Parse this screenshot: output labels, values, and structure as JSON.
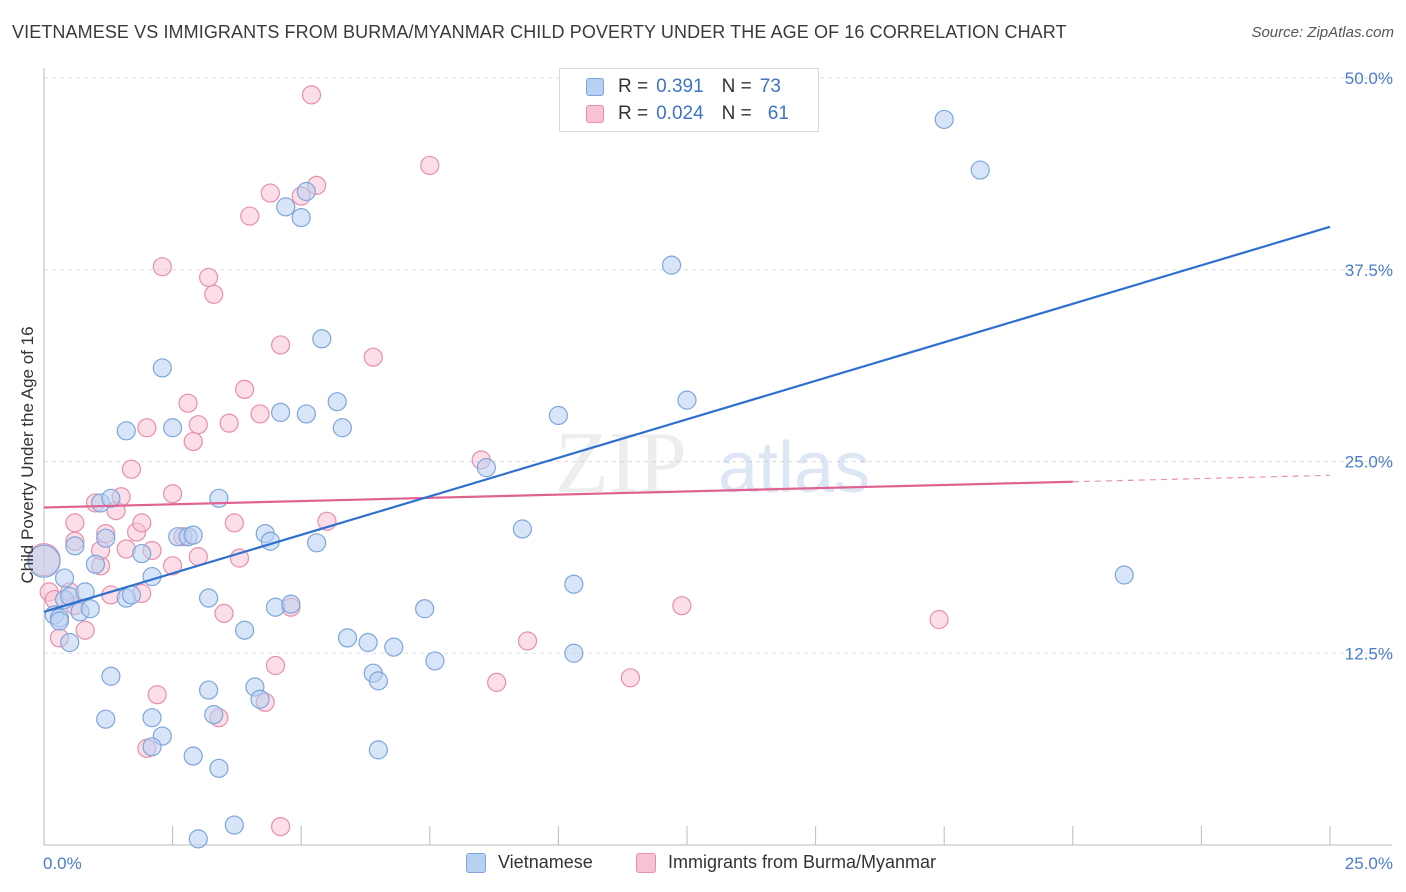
{
  "title": "VIETNAMESE VS IMMIGRANTS FROM BURMA/MYANMAR CHILD POVERTY UNDER THE AGE OF 16 CORRELATION CHART",
  "source": "Source: ZipAtlas.com",
  "watermark": {
    "zip": "ZIP",
    "atlas": "atlas"
  },
  "legend": {
    "rows": [
      {
        "r_label": "R =",
        "r_value": "0.391",
        "n_label": "N =",
        "n_value": "73"
      },
      {
        "r_label": "R =",
        "r_value": "0.024",
        "n_label": "N =",
        "n_value": "61"
      }
    ]
  },
  "bottom_legend": {
    "series_a": "Vietnamese",
    "series_b": "Immigrants from Burma/Myanmar"
  },
  "colors": {
    "blue_fill": "#b8d0f2",
    "blue_stroke": "#7ea6dc",
    "blue_line": "#2f6fcd",
    "pink_fill": "#f7c3d3",
    "pink_stroke": "#e88fab",
    "pink_line": "#e0628f",
    "grid": "#dddddd",
    "tick_text": "#4a7cc9"
  },
  "chart_data": {
    "type": "scatter",
    "title": "VIETNAMESE VS IMMIGRANTS FROM BURMA/MYANMAR CHILD POVERTY UNDER THE AGE OF 16 CORRELATION CHART",
    "xlabel": "",
    "ylabel": "Child Poverty Under the Age of 16",
    "xlim": [
      0,
      25
    ],
    "ylim": [
      0,
      50
    ],
    "x_tick_labels": [
      {
        "value": 0,
        "label": "0.0%"
      },
      {
        "value": 25,
        "label": "25.0%"
      }
    ],
    "y_tick_labels": [
      {
        "value": 50,
        "label": "50.0%"
      },
      {
        "value": 37.5,
        "label": "37.5%"
      },
      {
        "value": 25,
        "label": "25.0%"
      },
      {
        "value": 12.5,
        "label": "12.5%"
      }
    ],
    "series": [
      {
        "name": "Vietnamese",
        "r": 0.391,
        "n": 73,
        "trend": {
          "x0": 0,
          "y0": 15.2,
          "x1": 25,
          "y1": 40.3,
          "dashed_from": null
        },
        "points": [
          [
            0,
            18.5
          ],
          [
            0.2,
            15.0
          ],
          [
            0.3,
            14.8
          ],
          [
            0.4,
            16.0
          ],
          [
            0.4,
            17.4
          ],
          [
            0.5,
            16.2
          ],
          [
            0.6,
            19.5
          ],
          [
            0.7,
            15.2
          ],
          [
            0.8,
            16.5
          ],
          [
            0.9,
            15.4
          ],
          [
            1.0,
            18.3
          ],
          [
            1.1,
            22.3
          ],
          [
            1.3,
            22.6
          ],
          [
            1.3,
            11.0
          ],
          [
            1.2,
            8.2
          ],
          [
            1.6,
            27.0
          ],
          [
            1.6,
            16.1
          ],
          [
            1.7,
            16.3
          ],
          [
            1.9,
            19.0
          ],
          [
            2.1,
            17.5
          ],
          [
            2.1,
            8.3
          ],
          [
            2.3,
            7.1
          ],
          [
            2.3,
            31.1
          ],
          [
            2.5,
            27.2
          ],
          [
            2.6,
            20.1
          ],
          [
            2.8,
            20.1
          ],
          [
            2.9,
            20.2
          ],
          [
            2.9,
            5.8
          ],
          [
            3.2,
            16.1
          ],
          [
            3.2,
            10.1
          ],
          [
            3.3,
            8.5
          ],
          [
            3.4,
            5.0
          ],
          [
            3.4,
            22.6
          ],
          [
            3.7,
            1.3
          ],
          [
            3.9,
            14.0
          ],
          [
            4.1,
            10.3
          ],
          [
            4.2,
            9.5
          ],
          [
            4.3,
            20.3
          ],
          [
            4.4,
            19.8
          ],
          [
            4.5,
            15.5
          ],
          [
            4.6,
            28.2
          ],
          [
            4.7,
            41.6
          ],
          [
            4.8,
            15.7
          ],
          [
            5.0,
            40.9
          ],
          [
            5.1,
            42.6
          ],
          [
            5.1,
            28.1
          ],
          [
            5.3,
            19.7
          ],
          [
            5.4,
            33.0
          ],
          [
            5.7,
            28.9
          ],
          [
            5.8,
            27.2
          ],
          [
            5.9,
            13.5
          ],
          [
            6.3,
            13.2
          ],
          [
            6.4,
            11.2
          ],
          [
            6.5,
            10.7
          ],
          [
            6.5,
            6.2
          ],
          [
            6.8,
            12.9
          ],
          [
            7.4,
            15.4
          ],
          [
            7.6,
            12.0
          ],
          [
            8.6,
            24.6
          ],
          [
            9.3,
            20.6
          ],
          [
            10.0,
            28.0
          ],
          [
            10.3,
            12.5
          ],
          [
            10.3,
            17.0
          ],
          [
            12.2,
            37.8
          ],
          [
            12.5,
            29.0
          ],
          [
            17.5,
            47.3
          ],
          [
            18.2,
            44.0
          ],
          [
            21.0,
            17.6
          ],
          [
            0.5,
            13.2
          ],
          [
            0.3,
            14.6
          ],
          [
            2.1,
            6.4
          ],
          [
            1.2,
            20.0
          ],
          [
            3.0,
            0.4
          ]
        ]
      },
      {
        "name": "Immigrants from Burma/Myanmar",
        "r": 0.024,
        "n": 61,
        "trend": {
          "x0": 0,
          "y0": 22.0,
          "x1": 25,
          "y1": 24.1,
          "dashed_from": 20.0
        },
        "points": [
          [
            0,
            18.6
          ],
          [
            0.1,
            16.5
          ],
          [
            0.2,
            16.0
          ],
          [
            0.3,
            13.5
          ],
          [
            0.5,
            16.5
          ],
          [
            0.6,
            15.6
          ],
          [
            0.6,
            21.0
          ],
          [
            0.6,
            19.8
          ],
          [
            0.8,
            14.0
          ],
          [
            1.0,
            22.3
          ],
          [
            1.1,
            18.2
          ],
          [
            1.1,
            19.2
          ],
          [
            1.2,
            20.3
          ],
          [
            1.3,
            16.3
          ],
          [
            1.4,
            21.8
          ],
          [
            1.5,
            22.7
          ],
          [
            1.6,
            19.3
          ],
          [
            1.7,
            24.5
          ],
          [
            1.8,
            20.4
          ],
          [
            1.9,
            21.0
          ],
          [
            1.9,
            16.4
          ],
          [
            2.0,
            27.2
          ],
          [
            2.1,
            19.2
          ],
          [
            2.2,
            9.8
          ],
          [
            2.3,
            37.7
          ],
          [
            2.5,
            18.2
          ],
          [
            2.5,
            22.9
          ],
          [
            2.7,
            20.1
          ],
          [
            2.8,
            28.8
          ],
          [
            2.9,
            26.3
          ],
          [
            3.0,
            27.4
          ],
          [
            3.0,
            18.8
          ],
          [
            3.2,
            37.0
          ],
          [
            3.3,
            35.9
          ],
          [
            3.4,
            8.3
          ],
          [
            3.5,
            15.1
          ],
          [
            3.6,
            27.5
          ],
          [
            3.7,
            21.0
          ],
          [
            3.8,
            18.7
          ],
          [
            3.9,
            29.7
          ],
          [
            4.0,
            41.0
          ],
          [
            4.2,
            28.1
          ],
          [
            4.3,
            9.3
          ],
          [
            4.4,
            42.5
          ],
          [
            4.5,
            11.7
          ],
          [
            4.6,
            32.6
          ],
          [
            4.6,
            1.2
          ],
          [
            4.8,
            15.5
          ],
          [
            5.0,
            42.3
          ],
          [
            5.2,
            48.9
          ],
          [
            5.3,
            43.0
          ],
          [
            5.5,
            21.1
          ],
          [
            6.4,
            31.8
          ],
          [
            7.5,
            44.3
          ],
          [
            8.5,
            25.1
          ],
          [
            8.8,
            10.6
          ],
          [
            9.4,
            13.3
          ],
          [
            11.4,
            10.9
          ],
          [
            12.4,
            15.6
          ],
          [
            17.4,
            14.7
          ],
          [
            2.0,
            6.3
          ]
        ]
      }
    ]
  }
}
